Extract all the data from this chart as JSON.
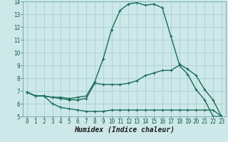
{
  "xlabel": "Humidex (Indice chaleur)",
  "ylabel": "",
  "background_color": "#cce8e8",
  "grid_color": "#aacfcf",
  "line_color": "#1a6b5a",
  "xlim": [
    -0.5,
    23.5
  ],
  "ylim": [
    5,
    14
  ],
  "xticks": [
    0,
    1,
    2,
    3,
    4,
    5,
    6,
    7,
    8,
    9,
    10,
    11,
    12,
    13,
    14,
    15,
    16,
    17,
    18,
    19,
    20,
    21,
    22,
    23
  ],
  "yticks": [
    5,
    6,
    7,
    8,
    9,
    10,
    11,
    12,
    13,
    14
  ],
  "line1_x": [
    0,
    1,
    2,
    3,
    4,
    5,
    6,
    7,
    8,
    9,
    10,
    11,
    12,
    13,
    14,
    15,
    16,
    17,
    18,
    19,
    20,
    21,
    22,
    23
  ],
  "line1_y": [
    6.9,
    6.6,
    6.6,
    6.0,
    5.7,
    5.6,
    5.5,
    5.4,
    5.4,
    5.4,
    5.5,
    5.5,
    5.5,
    5.5,
    5.5,
    5.5,
    5.5,
    5.5,
    5.5,
    5.5,
    5.5,
    5.5,
    5.5,
    5.0
  ],
  "line2_x": [
    0,
    1,
    2,
    3,
    4,
    5,
    6,
    7,
    8,
    9,
    10,
    11,
    12,
    13,
    14,
    15,
    16,
    17,
    18,
    19,
    20,
    21,
    22,
    23
  ],
  "line2_y": [
    6.9,
    6.6,
    6.6,
    6.5,
    6.4,
    6.3,
    6.3,
    6.4,
    7.6,
    7.5,
    7.5,
    7.5,
    7.6,
    7.8,
    8.2,
    8.4,
    8.6,
    8.6,
    9.0,
    8.3,
    7.1,
    6.3,
    5.0,
    5.0
  ],
  "line3_x": [
    0,
    1,
    2,
    3,
    4,
    5,
    6,
    7,
    8,
    9,
    10,
    11,
    12,
    13,
    14,
    15,
    16,
    17,
    18,
    19,
    20,
    21,
    22,
    23
  ],
  "line3_y": [
    6.9,
    6.6,
    6.6,
    6.5,
    6.5,
    6.4,
    6.5,
    6.6,
    7.7,
    9.5,
    11.8,
    13.3,
    13.8,
    13.9,
    13.7,
    13.8,
    13.5,
    11.3,
    9.1,
    8.7,
    8.2,
    7.1,
    6.3,
    5.0
  ],
  "marker": "+",
  "marker_size": 3,
  "linewidth": 1.0,
  "tick_fontsize": 5.5,
  "xlabel_fontsize": 7
}
